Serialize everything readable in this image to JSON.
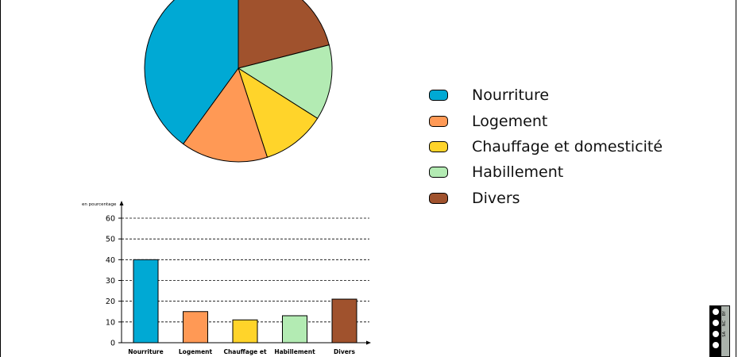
{
  "chart_data": [
    {
      "type": "pie",
      "categories": [
        "Nourriture",
        "Logement",
        "Chauffage et domesticité",
        "Habillement",
        "Divers"
      ],
      "values": [
        40,
        15,
        11,
        13,
        21
      ],
      "colors": [
        "#00a9d4",
        "#ff9955",
        "#ffd42a",
        "#b3ebb3",
        "#a0522d"
      ],
      "legend": {
        "placement": "right",
        "entries": [
          "Nourriture",
          "Logement",
          "Chauffage et domesticité",
          "Habillement",
          "Divers"
        ]
      }
    },
    {
      "type": "bar",
      "categories": [
        "Nourriture",
        "Logement",
        "Chauffage et",
        "Habillement",
        "Divers"
      ],
      "values": [
        40,
        15,
        11,
        13,
        21
      ],
      "colors": [
        "#00a9d4",
        "#ff9955",
        "#ffd42a",
        "#b3ebb3",
        "#a0522d"
      ],
      "ylabel": "en pourcentage",
      "ylim": [
        0,
        60
      ],
      "yticks": [
        0,
        10,
        20,
        30,
        40,
        50,
        60
      ],
      "grid": "dashed horizontal"
    }
  ],
  "badge": {
    "icon": "creative-commons-icon",
    "labels": [
      "BY",
      "NC",
      "SA"
    ]
  }
}
